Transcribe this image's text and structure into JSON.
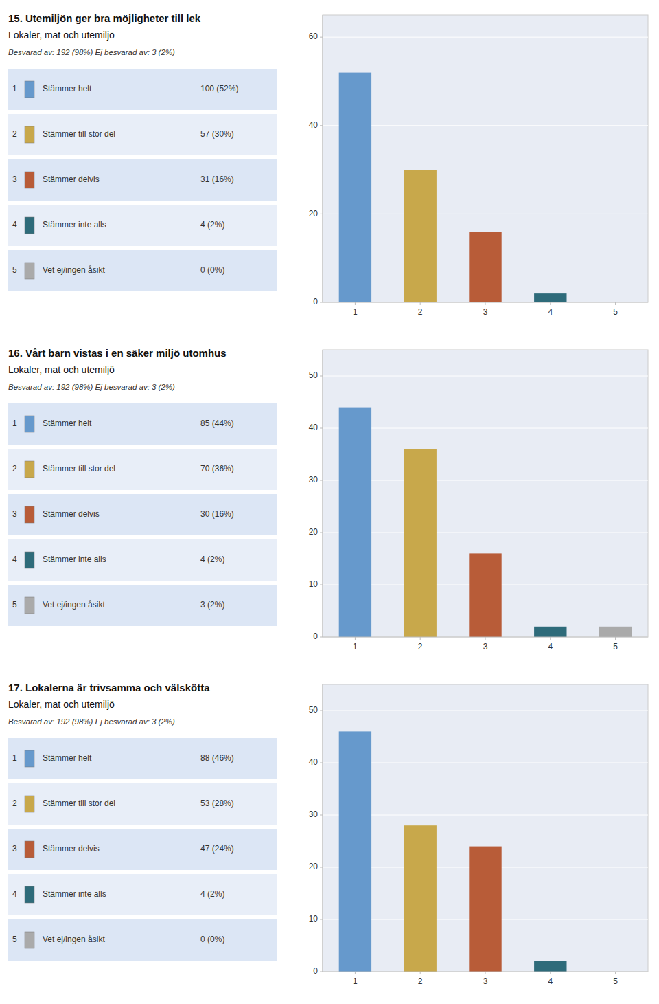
{
  "chart_data": [
    {
      "type": "bar",
      "title": "15. Utemiljön ger bra möjligheter till lek",
      "subtitle": "Lokaler, mat och utemiljö",
      "annotations": [
        "Besvarad av: 192 (98%) Ej besvarad av: 3 (2%)"
      ],
      "categories": [
        "1",
        "2",
        "3",
        "4",
        "5"
      ],
      "legend_entries": [
        "Stämmer helt",
        "Stämmer till stor del",
        "Stämmer delvis",
        "Stämmer inte alls",
        "Vet ej/ingen åsikt"
      ],
      "values": [
        52,
        30,
        16,
        2,
        0
      ],
      "value_labels": [
        "52%",
        "30%",
        "16%",
        "2%",
        "0%"
      ],
      "counts": [
        100,
        57,
        31,
        4,
        0
      ],
      "colors": [
        "#6699cc",
        "#c8a84b",
        "#b85c38",
        "#2e6b7a",
        "#aaaaaa"
      ],
      "ylim": [
        0,
        65
      ],
      "yticks": [
        0,
        20,
        40,
        60
      ],
      "grid": true
    },
    {
      "type": "bar",
      "title": "16. Vårt barn vistas i en säker miljö utomhus",
      "subtitle": "Lokaler, mat och utemiljö",
      "annotations": [
        "Besvarad av: 192 (98%) Ej besvarad av: 3 (2%)"
      ],
      "categories": [
        "1",
        "2",
        "3",
        "4",
        "5"
      ],
      "legend_entries": [
        "Stämmer helt",
        "Stämmer till stor del",
        "Stämmer delvis",
        "Stämmer inte alls",
        "Vet ej/ingen åsikt"
      ],
      "values": [
        44,
        36,
        16,
        2,
        2
      ],
      "value_labels": [
        "44%",
        "36%",
        "16%",
        "2%",
        "2%"
      ],
      "counts": [
        85,
        70,
        30,
        4,
        3
      ],
      "colors": [
        "#6699cc",
        "#c8a84b",
        "#b85c38",
        "#2e6b7a",
        "#aaaaaa"
      ],
      "ylim": [
        0,
        55
      ],
      "yticks": [
        0,
        10,
        20,
        30,
        40,
        50
      ],
      "grid": true
    },
    {
      "type": "bar",
      "title": "17. Lokalerna är trivsamma och välskötta",
      "subtitle": "Lokaler, mat och utemiljö",
      "annotations": [
        "Besvarad av: 192 (98%) Ej besvarad av: 3 (2%)"
      ],
      "categories": [
        "1",
        "2",
        "3",
        "4",
        "5"
      ],
      "legend_entries": [
        "Stämmer helt",
        "Stämmer till stor del",
        "Stämmer delvis",
        "Stämmer inte alls",
        "Vet ej/ingen åsikt"
      ],
      "values": [
        46,
        28,
        24,
        2,
        0
      ],
      "value_labels": [
        "46%",
        "28%",
        "24%",
        "2%",
        "0%"
      ],
      "counts": [
        88,
        53,
        47,
        4,
        0
      ],
      "colors": [
        "#6699cc",
        "#c8a84b",
        "#b85c38",
        "#2e6b7a",
        "#aaaaaa"
      ],
      "ylim": [
        0,
        55
      ],
      "yticks": [
        0,
        10,
        20,
        30,
        40,
        50
      ],
      "grid": true
    }
  ]
}
